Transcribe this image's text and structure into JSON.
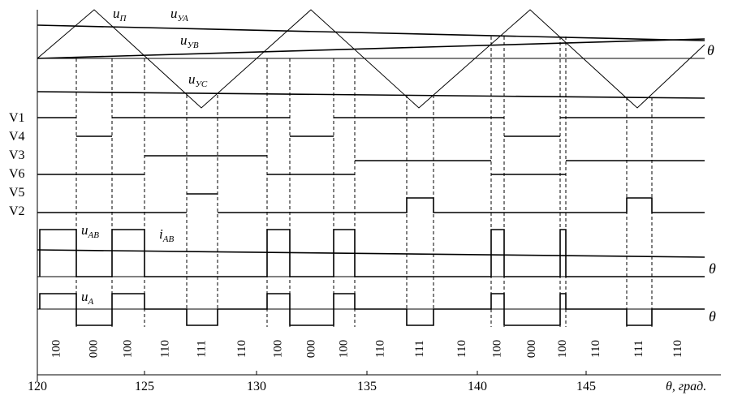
{
  "title": "",
  "labels": {
    "u_carrier": {
      "base": "u",
      "sub": "П"
    },
    "u_ya": {
      "base": "u",
      "sub": "УА"
    },
    "u_yb": {
      "base": "u",
      "sub": "УВ"
    },
    "u_yc": {
      "base": "u",
      "sub": "УС"
    },
    "u_ab": {
      "base": "u",
      "sub": "АВ"
    },
    "i_ab": {
      "base": "i",
      "sub": "АВ"
    },
    "u_a": {
      "base": "u",
      "sub": "А"
    },
    "theta": "θ",
    "xaxis_label": "θ, град."
  },
  "switch_labels": [
    "V1",
    "V4",
    "V3",
    "V6",
    "V5",
    "V2"
  ],
  "x_ticks": [
    "120",
    "125",
    "130",
    "135",
    "140",
    "145"
  ],
  "states": [
    "100",
    "000",
    "100",
    "110",
    "111",
    "110",
    "100",
    "000",
    "100",
    "110",
    "111",
    "110",
    "100",
    "000",
    "100",
    "110",
    "111",
    "110"
  ]
}
